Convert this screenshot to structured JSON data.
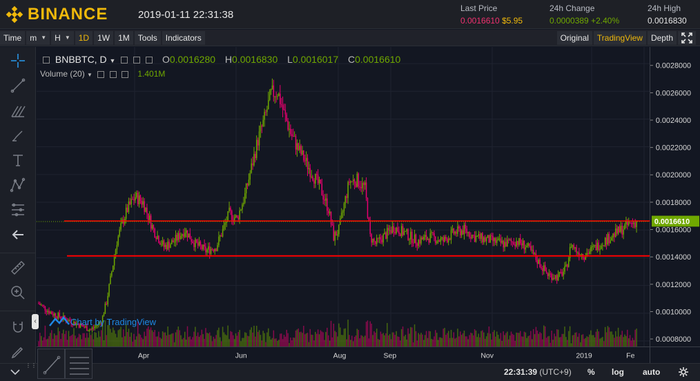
{
  "header": {
    "brand": "BINANCE",
    "clock": "2019-01-11 22:31:38",
    "last_price": {
      "label": "Last Price",
      "btc": "0.0016610",
      "usd": "$5.95"
    },
    "change_24h": {
      "label": "24h Change",
      "value": "0.0000389",
      "percent": "+2.40%"
    },
    "high_24h": {
      "label": "24h High",
      "value": "0.0016830"
    }
  },
  "toolbar": {
    "items": [
      {
        "label": "Time"
      },
      {
        "label": "m",
        "dropdown": true
      },
      {
        "label": "H",
        "dropdown": true
      },
      {
        "label": "1D",
        "active": true
      },
      {
        "label": "1W"
      },
      {
        "label": "1M"
      },
      {
        "label": "Tools"
      },
      {
        "label": "Indicators"
      }
    ],
    "right_items": [
      {
        "label": "Original"
      },
      {
        "label": "TradingView",
        "active": true
      },
      {
        "label": "Depth"
      }
    ]
  },
  "legend": {
    "symbol": "BNBBTC, D",
    "open_key": "O",
    "open": "0.0016280",
    "high_key": "H",
    "high": "0.0016830",
    "low_key": "L",
    "low": "0.0016017",
    "close_key": "C",
    "close": "0.0016610",
    "volume_label": "Volume (20)",
    "volume_value": "1.401M"
  },
  "watermark": "Chart by TradingView",
  "price_axis": {
    "ticks": [
      "0.0028000",
      "0.0026000",
      "0.0024000",
      "0.0022000",
      "0.0020000",
      "0.0018000",
      "0.0016000",
      "0.0014000",
      "0.0012000",
      "0.0010000",
      "0.0008000"
    ],
    "current": "0.0016610"
  },
  "time_axis": {
    "ticks": [
      "Apr",
      "Jun",
      "Aug",
      "Sep",
      "Nov",
      "2019",
      "Fe"
    ]
  },
  "bottom": {
    "time": "22:31:39",
    "tz": "(UTC+9)",
    "percent": "%",
    "log": "log",
    "auto": "auto"
  },
  "colors": {
    "up": "#70a800",
    "down": "#ea0070",
    "support": "#ff0000",
    "accent": "#f0b90b",
    "tag_bg": "#70a800"
  },
  "chart_data": {
    "type": "candlestick",
    "series_name": "BNBBTC, D",
    "price_ylim": [
      0.00076,
      0.00292
    ],
    "key_levels": [
      0.001665,
      0.001413
    ],
    "current_price": 0.001661,
    "anchors": [
      [
        0,
        0.00107
      ],
      [
        10,
        0.001
      ],
      [
        20,
        0.00096
      ],
      [
        30,
        0.00092
      ],
      [
        40,
        0.00088
      ],
      [
        48,
        0.00094
      ],
      [
        52,
        0.00108
      ],
      [
        56,
        0.0013
      ],
      [
        60,
        0.00152
      ],
      [
        64,
        0.00165
      ],
      [
        68,
        0.00175
      ],
      [
        74,
        0.00184
      ],
      [
        80,
        0.0018
      ],
      [
        88,
        0.0016
      ],
      [
        96,
        0.00148
      ],
      [
        104,
        0.00152
      ],
      [
        112,
        0.0016
      ],
      [
        120,
        0.0015
      ],
      [
        128,
        0.00145
      ],
      [
        136,
        0.00148
      ],
      [
        142,
        0.00162
      ],
      [
        146,
        0.00172
      ],
      [
        152,
        0.00168
      ],
      [
        158,
        0.00185
      ],
      [
        163,
        0.00205
      ],
      [
        168,
        0.00225
      ],
      [
        173,
        0.0024
      ],
      [
        178,
        0.00258
      ],
      [
        183,
        0.0026
      ],
      [
        188,
        0.00244
      ],
      [
        193,
        0.0023
      ],
      [
        198,
        0.0022
      ],
      [
        204,
        0.0021
      ],
      [
        210,
        0.002
      ],
      [
        216,
        0.0019
      ],
      [
        222,
        0.00175
      ],
      [
        226,
        0.00155
      ],
      [
        230,
        0.0016
      ],
      [
        234,
        0.00178
      ],
      [
        238,
        0.00195
      ],
      [
        244,
        0.00196
      ],
      [
        250,
        0.0019
      ],
      [
        254,
        0.00155
      ],
      [
        258,
        0.0015
      ],
      [
        264,
        0.00155
      ],
      [
        272,
        0.00162
      ],
      [
        280,
        0.00158
      ],
      [
        290,
        0.00152
      ],
      [
        300,
        0.00155
      ],
      [
        310,
        0.00152
      ],
      [
        318,
        0.00158
      ],
      [
        326,
        0.0016
      ],
      [
        334,
        0.00155
      ],
      [
        344,
        0.00153
      ],
      [
        356,
        0.0015
      ],
      [
        366,
        0.00152
      ],
      [
        374,
        0.00148
      ],
      [
        382,
        0.00138
      ],
      [
        390,
        0.00128
      ],
      [
        398,
        0.00126
      ],
      [
        404,
        0.00132
      ],
      [
        408,
        0.0015
      ],
      [
        412,
        0.00145
      ],
      [
        418,
        0.00142
      ],
      [
        424,
        0.00146
      ],
      [
        430,
        0.0015
      ],
      [
        438,
        0.00155
      ],
      [
        446,
        0.0016
      ],
      [
        452,
        0.00164
      ],
      [
        458,
        0.00166
      ]
    ],
    "volume_ylim": [
      0,
      10
    ],
    "x_ticks": [
      "Apr",
      "Jun",
      "Aug",
      "Sep",
      "Nov",
      "2019",
      "Fe"
    ]
  }
}
